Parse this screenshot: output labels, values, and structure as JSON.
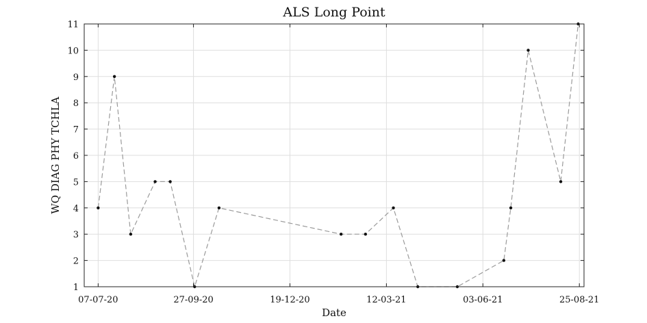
{
  "chart_data": {
    "type": "line",
    "title": "ALS Long Point",
    "xlabel": "Date",
    "ylabel": "WQ DIAG PHY TCHLA",
    "x_type": "date",
    "xlim": [
      "2020-06-25",
      "2021-08-29"
    ],
    "ylim": [
      1,
      11
    ],
    "x_ticks": [
      {
        "date": "2020-07-07",
        "label": "07-07-20"
      },
      {
        "date": "2020-09-27",
        "label": "27-09-20"
      },
      {
        "date": "2020-12-19",
        "label": "19-12-20"
      },
      {
        "date": "2021-03-12",
        "label": "12-03-21"
      },
      {
        "date": "2021-06-03",
        "label": "03-06-21"
      },
      {
        "date": "2021-08-25",
        "label": "25-08-21"
      }
    ],
    "y_ticks": [
      1,
      2,
      3,
      4,
      5,
      6,
      7,
      8,
      9,
      10,
      11
    ],
    "grid": true,
    "legend": "none",
    "line_style": "dashed",
    "line_color": "#9a9a9a",
    "marker_color": "#111111",
    "series": [
      {
        "points": [
          {
            "x": "2020-07-07",
            "y": 4
          },
          {
            "x": "2020-07-21",
            "y": 9
          },
          {
            "x": "2020-08-04",
            "y": 3
          },
          {
            "x": "2020-08-25",
            "y": 5
          },
          {
            "x": "2020-09-07",
            "y": 5
          },
          {
            "x": "2020-09-28",
            "y": 1
          },
          {
            "x": "2020-10-19",
            "y": 4
          },
          {
            "x": "2021-02-01",
            "y": 3
          },
          {
            "x": "2021-02-22",
            "y": 3
          },
          {
            "x": "2021-03-18",
            "y": 4
          },
          {
            "x": "2021-04-08",
            "y": 1
          },
          {
            "x": "2021-05-12",
            "y": 1
          },
          {
            "x": "2021-06-21",
            "y": 2
          },
          {
            "x": "2021-06-27",
            "y": 4
          },
          {
            "x": "2021-07-12",
            "y": 10
          },
          {
            "x": "2021-08-09",
            "y": 5
          },
          {
            "x": "2021-08-24",
            "y": 11
          }
        ]
      }
    ]
  }
}
